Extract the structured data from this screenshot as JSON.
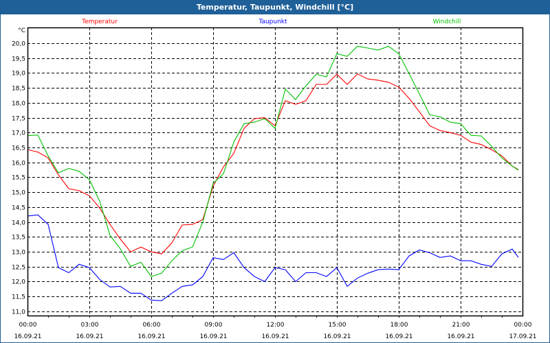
{
  "window": {
    "title": "Temperatur, Taupunkt, Windchill [°C]"
  },
  "chart_data": {
    "type": "line",
    "title": "Temperatur, Taupunkt, Windchill [°C]",
    "ylabel": "°C",
    "xlabel": "",
    "xlim": [
      0,
      24
    ],
    "ylim": [
      10.86,
      20.53
    ],
    "grid": true,
    "legend_placement": "top",
    "yticks": [
      11.0,
      11.5,
      12.0,
      12.5,
      13.0,
      13.5,
      14.0,
      14.5,
      15.0,
      15.5,
      16.0,
      16.5,
      17.0,
      17.5,
      18.0,
      18.5,
      19.0,
      19.5,
      20.0
    ],
    "ytick_labels": [
      "11,0",
      "11,5",
      "12,0",
      "12,5",
      "13,0",
      "13,5",
      "14,0",
      "14,5",
      "15,0",
      "15,5",
      "16,0",
      "16,5",
      "17,0",
      "17,5",
      "18,0",
      "18,5",
      "19,0",
      "19,5",
      "20,0"
    ],
    "xticks": [
      0,
      3,
      6,
      9,
      12,
      15,
      18,
      21,
      24
    ],
    "xtick_labels": [
      {
        "time": "00:00",
        "date": "16.09.21"
      },
      {
        "time": "03:00",
        "date": "16.09.21"
      },
      {
        "time": "06:00",
        "date": "16.09.21"
      },
      {
        "time": "09:00",
        "date": "16.09.21"
      },
      {
        "time": "12:00",
        "date": "16.09.21"
      },
      {
        "time": "15:00",
        "date": "16.09.21"
      },
      {
        "time": "18:00",
        "date": "16.09.21"
      },
      {
        "time": "21:00",
        "date": "16.09.21"
      },
      {
        "time": "00:00",
        "date": "17.09.21"
      }
    ],
    "x_hours": [
      0,
      0.5,
      1,
      1.5,
      2,
      2.5,
      3,
      3.5,
      4,
      4.5,
      5,
      5.5,
      6,
      6.5,
      7,
      7.5,
      8,
      8.5,
      9,
      9.5,
      10,
      10.5,
      11,
      11.5,
      12,
      12.5,
      13,
      13.5,
      14,
      14.5,
      15,
      15.5,
      16,
      16.5,
      17,
      17.5,
      18,
      18.5,
      19,
      19.5,
      20,
      20.5,
      21,
      21.5,
      22,
      22.5,
      23,
      23.5,
      23.8
    ],
    "series": [
      {
        "name": "Temperatur",
        "color": "#ff0000",
        "values": [
          16.43,
          16.35,
          16.15,
          15.58,
          15.12,
          15.05,
          14.88,
          14.47,
          13.92,
          13.43,
          13.0,
          13.16,
          13.0,
          12.93,
          13.3,
          13.9,
          13.92,
          14.08,
          15.2,
          15.85,
          16.3,
          17.14,
          17.47,
          17.5,
          17.23,
          18.07,
          17.95,
          18.07,
          18.62,
          18.62,
          18.96,
          18.62,
          18.97,
          18.8,
          18.76,
          18.69,
          18.53,
          18.15,
          17.7,
          17.23,
          17.07,
          17.0,
          16.91,
          16.68,
          16.6,
          16.43,
          16.22,
          15.88,
          15.76
        ]
      },
      {
        "name": "Taupunkt",
        "color": "#0000ff",
        "values": [
          14.2,
          14.24,
          13.92,
          12.47,
          12.3,
          12.58,
          12.47,
          12.07,
          11.82,
          11.84,
          11.61,
          11.61,
          11.38,
          11.36,
          11.61,
          11.84,
          11.89,
          12.17,
          12.8,
          12.74,
          12.97,
          12.47,
          12.17,
          12.0,
          12.47,
          12.4,
          12.0,
          12.3,
          12.3,
          12.17,
          12.47,
          11.84,
          12.12,
          12.28,
          12.4,
          12.42,
          12.4,
          12.86,
          13.06,
          12.97,
          12.81,
          12.86,
          12.7,
          12.7,
          12.58,
          12.51,
          12.93,
          13.09,
          12.81
        ]
      },
      {
        "name": "Windchill",
        "color": "#00c000",
        "values": [
          16.9,
          16.92,
          16.22,
          15.65,
          15.8,
          15.7,
          15.42,
          14.7,
          13.55,
          13.1,
          12.51,
          12.65,
          12.17,
          12.28,
          12.7,
          13.04,
          13.16,
          14.0,
          15.3,
          15.62,
          16.68,
          17.3,
          17.35,
          17.47,
          17.14,
          18.46,
          18.11,
          18.57,
          18.96,
          18.87,
          19.65,
          19.56,
          19.9,
          19.84,
          19.77,
          19.9,
          19.65,
          18.98,
          18.3,
          17.6,
          17.53,
          17.35,
          17.3,
          16.91,
          16.89,
          16.54,
          16.15,
          15.88,
          15.74
        ]
      }
    ]
  }
}
